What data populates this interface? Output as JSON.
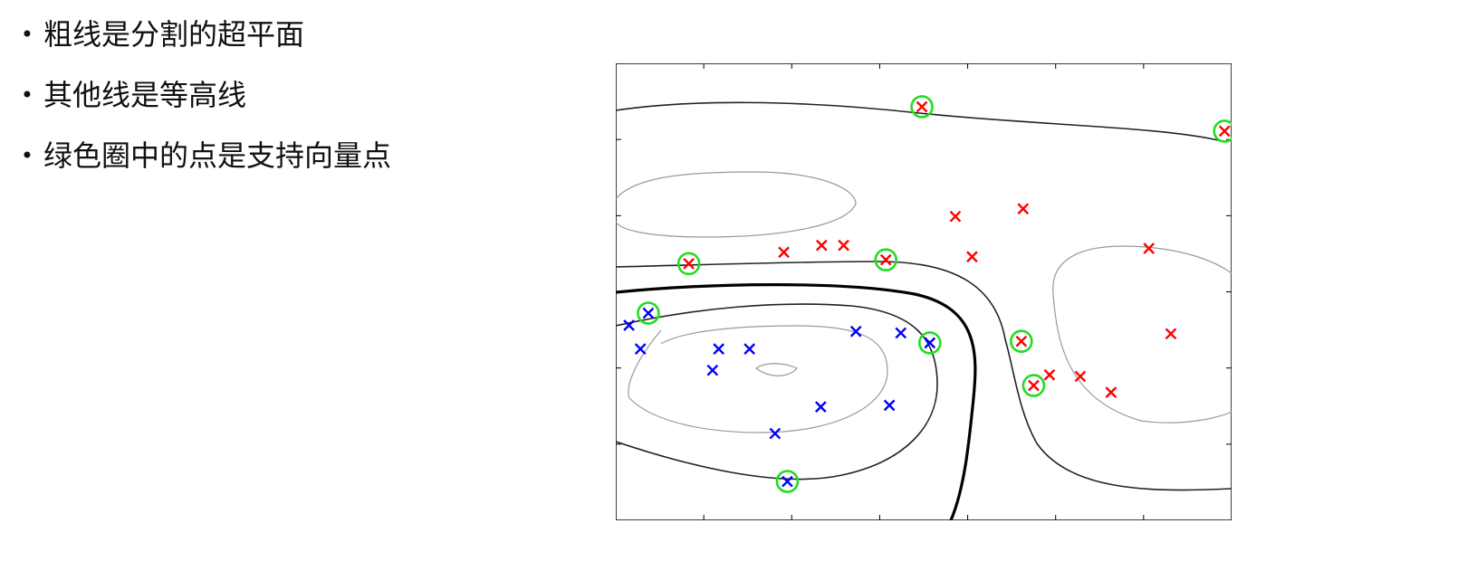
{
  "bullets": [
    {
      "text": "粗线是分割的超平面"
    },
    {
      "text": "其他线是等高线"
    },
    {
      "text": "绿色圈中的点是支持向量点"
    }
  ],
  "colors": {
    "positive_marker": "#ff0000",
    "negative_marker": "#0000ff",
    "support_vector_circle": "#22dd22",
    "separating_line": "#000000",
    "margin_line": "#222222",
    "contour_line": "#999999"
  },
  "chart_data": {
    "type": "scatter",
    "title": "",
    "xlabel": "",
    "ylabel": "",
    "xlim": [
      0,
      7
    ],
    "ylim": [
      0,
      6
    ],
    "grid": false,
    "legend": "none",
    "series": [
      {
        "marker": "x",
        "color": "#ff0000",
        "points": [
          {
            "x": 3.48,
            "y": 5.43,
            "sv": true
          },
          {
            "x": 6.92,
            "y": 5.11,
            "sv": true
          },
          {
            "x": 0.83,
            "y": 3.37,
            "sv": true
          },
          {
            "x": 3.07,
            "y": 3.42,
            "sv": true
          },
          {
            "x": 4.61,
            "y": 2.35,
            "sv": true
          },
          {
            "x": 4.75,
            "y": 1.77,
            "sv": true
          },
          {
            "x": 1.91,
            "y": 3.52
          },
          {
            "x": 2.34,
            "y": 3.61
          },
          {
            "x": 2.59,
            "y": 3.61
          },
          {
            "x": 3.86,
            "y": 3.99
          },
          {
            "x": 4.63,
            "y": 4.09
          },
          {
            "x": 4.05,
            "y": 3.46
          },
          {
            "x": 6.06,
            "y": 3.57
          },
          {
            "x": 6.31,
            "y": 2.45
          },
          {
            "x": 4.93,
            "y": 1.91
          },
          {
            "x": 5.28,
            "y": 1.89
          },
          {
            "x": 5.63,
            "y": 1.68
          }
        ]
      },
      {
        "marker": "x",
        "color": "#0000ff",
        "points": [
          {
            "x": 0.37,
            "y": 2.72,
            "sv": true
          },
          {
            "x": 3.57,
            "y": 2.33,
            "sv": true
          },
          {
            "x": 1.95,
            "y": 0.51,
            "sv": true
          },
          {
            "x": 0.15,
            "y": 2.56
          },
          {
            "x": 0.28,
            "y": 2.25
          },
          {
            "x": 1.17,
            "y": 2.25
          },
          {
            "x": 1.52,
            "y": 2.25
          },
          {
            "x": 1.1,
            "y": 1.97
          },
          {
            "x": 2.73,
            "y": 2.48
          },
          {
            "x": 3.24,
            "y": 2.46
          },
          {
            "x": 1.81,
            "y": 1.14
          },
          {
            "x": 2.33,
            "y": 1.49
          },
          {
            "x": 3.11,
            "y": 1.51
          }
        ]
      }
    ]
  }
}
